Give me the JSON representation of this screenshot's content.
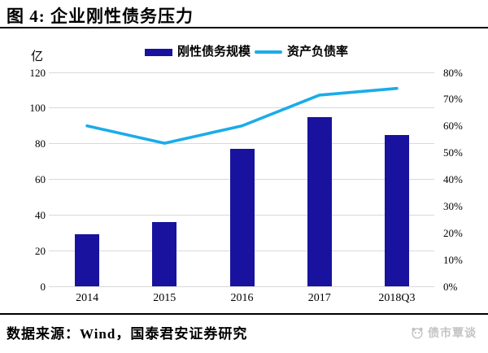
{
  "title": "图 4: 企业刚性债务压力",
  "unit_label": "亿",
  "legend": {
    "bar_label": "刚性债务规模",
    "line_label": "资产负债率"
  },
  "footer": {
    "source": "数据来源：Wind，国泰君安证券研究",
    "watermark": "债市覃谈"
  },
  "colors": {
    "bar": "#18129E",
    "line": "#1AACE8",
    "grid": "#d9d9d9",
    "watermark": "#c3c3c3"
  },
  "chart_data": {
    "type": "bar",
    "subtype": "bar+line combo, dual axis",
    "categories": [
      "2014",
      "2015",
      "2016",
      "2017",
      "2018Q3"
    ],
    "series": [
      {
        "name": "刚性债务规模",
        "type": "bar",
        "axis": "left",
        "unit": "亿",
        "values": [
          29,
          36,
          77,
          95,
          85
        ],
        "color": "#18129E"
      },
      {
        "name": "资产负债率",
        "type": "line",
        "axis": "right",
        "unit": "%",
        "values": [
          60,
          53.5,
          60,
          71.5,
          74
        ],
        "color": "#1AACE8"
      }
    ],
    "left_axis": {
      "title": "亿",
      "min": 0,
      "max": 120,
      "tick_values": [
        120,
        100,
        80,
        60,
        40,
        20,
        0
      ],
      "tick_labels": [
        "120",
        "100",
        "80",
        "60",
        "40",
        "20",
        "0"
      ]
    },
    "right_axis": {
      "min": 0,
      "max": 80,
      "tick_values": [
        80,
        70,
        60,
        50,
        40,
        30,
        20,
        10,
        0
      ],
      "tick_labels": [
        "80%",
        "70%",
        "60%",
        "50%",
        "40%",
        "30%",
        "20%",
        "10%",
        "0%"
      ]
    },
    "grid": "horizontal gridlines only",
    "legend_position": "top"
  }
}
